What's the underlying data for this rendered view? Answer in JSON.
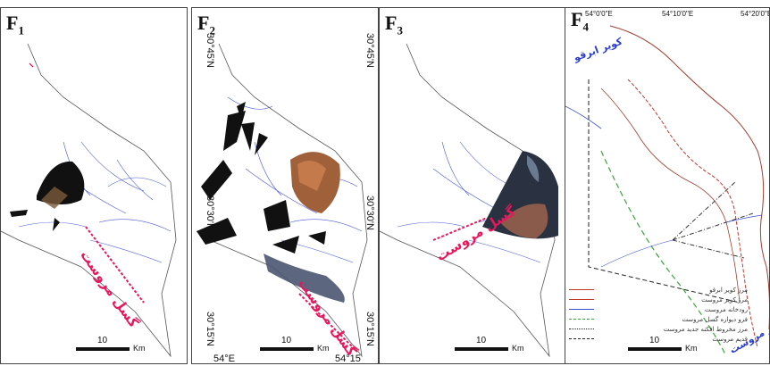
{
  "panels": [
    {
      "letter": "F",
      "index": "1"
    },
    {
      "letter": "F",
      "index": "2"
    },
    {
      "letter": "F",
      "index": "3"
    },
    {
      "letter": "F",
      "index": "4"
    }
  ],
  "coordinates": {
    "f2_lat_top_left": "30°45'N",
    "f2_lat_top_right": "30°45'N",
    "f2_lat_mid_left": "30°30'N",
    "f2_lat_mid_right": "30°30'N",
    "f2_lat_bottom_left": "30°15'N",
    "f2_lat_bottom_right": "30°15'N",
    "f2_lon_left": "54°E",
    "f2_lon_right": "54°15",
    "f4_lon_1": "54°0'0\"E",
    "f4_lon_2": "54°10'0\"E",
    "f4_lon_3": "54°20'0\"E"
  },
  "scale_bar": {
    "value": "10",
    "unit": "Km"
  },
  "fault_label": "گسل مروست",
  "f4_labels": {
    "top_river": "کویر ابرقو",
    "bottom_river": "کویر مروست"
  },
  "legend": [
    {
      "text": "مرز کویر ابرقو",
      "color": "#c0392b",
      "style": "solid"
    },
    {
      "text": "مرز کویر مروست",
      "color": "#c0392b",
      "style": "solid"
    },
    {
      "text": "رودخانه مروست",
      "color": "#3a4fd8",
      "style": "solid"
    },
    {
      "text": "فرو دیواره گسل مروست",
      "color": "#3aa33a",
      "style": "dashed"
    },
    {
      "text": "مرز مخروط افکنه جدید مروست",
      "color": "#222222",
      "style": "dashdot"
    },
    {
      "text": "قدیم مروست",
      "color": "#222222",
      "style": "dashed"
    }
  ],
  "colors": {
    "fault": "#e8175d",
    "drainage": "#4a5ad8",
    "outline": "#555555"
  }
}
